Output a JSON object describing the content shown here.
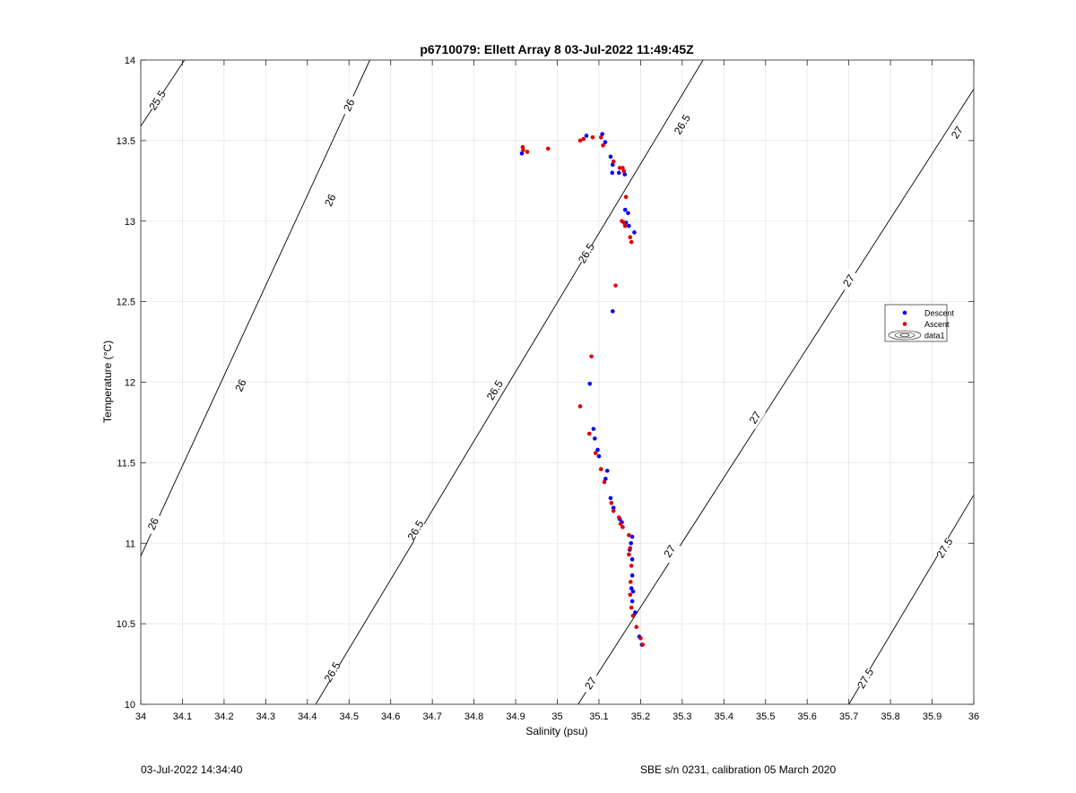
{
  "chart_data": {
    "type": "scatter",
    "title": "p6710079: Ellett Array 8 03-Jul-2022 11:49:45Z",
    "xlabel": "Salinity (psu)",
    "ylabel": "Temperature (°C)",
    "xlim": [
      34,
      36
    ],
    "ylim": [
      10,
      14
    ],
    "xticks": [
      34,
      34.1,
      34.2,
      34.3,
      34.4,
      34.5,
      34.6,
      34.7,
      34.8,
      34.9,
      35,
      35.1,
      35.2,
      35.3,
      35.4,
      35.5,
      35.6,
      35.7,
      35.8,
      35.9,
      36
    ],
    "xtick_labels": [
      "34",
      "34.1",
      "34.2",
      "34.3",
      "34.4",
      "34.5",
      "34.6",
      "34.7",
      "34.8",
      "34.9",
      "35",
      "35.1",
      "35.2",
      "35.3",
      "35.4",
      "35.5",
      "35.6",
      "35.7",
      "35.8",
      "35.9",
      "36"
    ],
    "yticks": [
      10,
      10.5,
      11,
      11.5,
      12,
      12.5,
      13,
      13.5,
      14
    ],
    "ytick_labels": [
      "10",
      "10.5",
      "11",
      "11.5",
      "12",
      "12.5",
      "13",
      "13.5",
      "14"
    ],
    "grid": true,
    "legend_position": "right",
    "series": [
      {
        "name": "Descent",
        "color": "#0000ff",
        "points": [
          [
            34.915,
            13.42
          ],
          [
            35.07,
            13.53
          ],
          [
            35.108,
            13.54
          ],
          [
            35.115,
            13.49
          ],
          [
            35.128,
            13.4
          ],
          [
            35.133,
            13.35
          ],
          [
            35.132,
            13.3
          ],
          [
            35.148,
            13.3
          ],
          [
            35.162,
            13.29
          ],
          [
            35.163,
            13.07
          ],
          [
            35.17,
            13.05
          ],
          [
            35.165,
            12.99
          ],
          [
            35.172,
            12.97
          ],
          [
            35.185,
            12.93
          ],
          [
            35.133,
            12.44
          ],
          [
            35.078,
            11.99
          ],
          [
            35.087,
            11.71
          ],
          [
            35.09,
            11.65
          ],
          [
            35.097,
            11.58
          ],
          [
            35.1,
            11.54
          ],
          [
            35.12,
            11.45
          ],
          [
            35.116,
            11.4
          ],
          [
            35.128,
            11.28
          ],
          [
            35.135,
            11.22
          ],
          [
            35.15,
            11.15
          ],
          [
            35.155,
            11.13
          ],
          [
            35.18,
            11.04
          ],
          [
            35.177,
            11.0
          ],
          [
            35.174,
            10.96
          ],
          [
            35.18,
            10.9
          ],
          [
            35.18,
            10.8
          ],
          [
            35.178,
            10.72
          ],
          [
            35.182,
            10.7
          ],
          [
            35.18,
            10.64
          ],
          [
            35.187,
            10.57
          ],
          [
            35.182,
            10.55
          ],
          [
            35.197,
            10.42
          ],
          [
            35.203,
            10.37
          ]
        ]
      },
      {
        "name": "Ascent",
        "color": "#e00000",
        "points": [
          [
            34.917,
            13.46
          ],
          [
            34.918,
            13.44
          ],
          [
            34.928,
            13.43
          ],
          [
            34.978,
            13.45
          ],
          [
            35.055,
            13.5
          ],
          [
            35.063,
            13.51
          ],
          [
            35.085,
            13.52
          ],
          [
            35.105,
            13.52
          ],
          [
            35.11,
            13.47
          ],
          [
            35.135,
            13.37
          ],
          [
            35.15,
            13.33
          ],
          [
            35.157,
            13.33
          ],
          [
            35.16,
            13.31
          ],
          [
            35.165,
            13.15
          ],
          [
            35.155,
            13.0
          ],
          [
            35.16,
            12.99
          ],
          [
            35.163,
            12.97
          ],
          [
            35.175,
            12.9
          ],
          [
            35.178,
            12.87
          ],
          [
            35.14,
            12.6
          ],
          [
            35.082,
            12.16
          ],
          [
            35.055,
            11.85
          ],
          [
            35.077,
            11.68
          ],
          [
            35.092,
            11.56
          ],
          [
            35.105,
            11.46
          ],
          [
            35.113,
            11.38
          ],
          [
            35.13,
            11.25
          ],
          [
            35.135,
            11.2
          ],
          [
            35.148,
            11.16
          ],
          [
            35.152,
            11.12
          ],
          [
            35.157,
            11.1
          ],
          [
            35.172,
            11.05
          ],
          [
            35.175,
            10.97
          ],
          [
            35.172,
            10.93
          ],
          [
            35.178,
            10.86
          ],
          [
            35.176,
            10.76
          ],
          [
            35.175,
            10.68
          ],
          [
            35.178,
            10.6
          ],
          [
            35.182,
            10.55
          ],
          [
            35.19,
            10.48
          ],
          [
            35.2,
            10.41
          ],
          [
            35.205,
            10.37
          ]
        ]
      },
      {
        "name": "data1",
        "type": "contour",
        "color": "#000000",
        "lines": [
          {
            "level": "25.5",
            "from": [
              34.0,
              13.59
            ],
            "to": [
              34.105,
              14.0
            ],
            "labels": [
              [
                34.04,
                13.75
              ]
            ]
          },
          {
            "level": "26",
            "from": [
              34.0,
              10.92
            ],
            "to": [
              34.55,
              14.0
            ],
            "labels": [
              [
                34.03,
                11.12
              ],
              [
                34.24,
                11.98
              ],
              [
                34.455,
                13.13
              ],
              [
                34.5,
                13.72
              ]
            ]
          },
          {
            "level": "26.5",
            "from": [
              34.42,
              10.0
            ],
            "to": [
              35.35,
              14.0
            ],
            "labels": [
              [
                34.46,
                10.2
              ],
              [
                34.66,
                11.08
              ],
              [
                34.85,
                11.95
              ],
              [
                35.07,
                12.8
              ],
              [
                35.3,
                13.6
              ]
            ]
          },
          {
            "level": "27",
            "from": [
              35.05,
              10.0
            ],
            "to": [
              36.0,
              13.82
            ],
            "labels": [
              [
                35.08,
                10.13
              ],
              [
                35.27,
                10.95
              ],
              [
                35.475,
                11.78
              ],
              [
                35.7,
                12.63
              ],
              [
                35.96,
                13.55
              ]
            ]
          },
          {
            "level": "27.5",
            "from": [
              35.7,
              10.0
            ],
            "to": [
              36.0,
              11.3
            ],
            "labels": [
              [
                35.74,
                10.16
              ],
              [
                35.93,
                10.97
              ]
            ]
          }
        ]
      }
    ]
  },
  "footer": {
    "left": "03-Jul-2022 14:34:40",
    "right": "SBE s/n 0231, calibration 05 March 2020"
  }
}
